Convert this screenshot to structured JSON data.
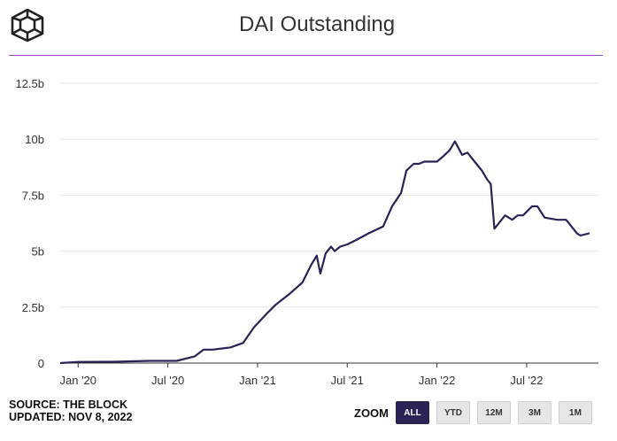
{
  "header": {
    "title": "DAI Outstanding"
  },
  "footer": {
    "source": "SOURCE: THE BLOCK",
    "updated": "UPDATED: NOV 8, 2022"
  },
  "zoom": {
    "label": "ZOOM",
    "buttons": [
      "ALL",
      "YTD",
      "12M",
      "3M",
      "1M"
    ],
    "active": "ALL"
  },
  "colors": {
    "line": "#2a2356",
    "rule": "#a04bc8",
    "active_button": "#2a2356"
  },
  "chart_data": {
    "type": "line",
    "title": "DAI Outstanding",
    "xlabel": "",
    "ylabel": "",
    "ylim": [
      0,
      12.5
    ],
    "y_ticks": [
      {
        "value": 0,
        "label": "0"
      },
      {
        "value": 2.5,
        "label": "2.5b"
      },
      {
        "value": 5,
        "label": "5b"
      },
      {
        "value": 7.5,
        "label": "7.5b"
      },
      {
        "value": 10,
        "label": "10b"
      },
      {
        "value": 12.5,
        "label": "12.5b"
      }
    ],
    "xlim": [
      2019.9,
      2022.9
    ],
    "x_ticks": [
      {
        "value": 2020.0,
        "label": "Jan '20"
      },
      {
        "value": 2020.5,
        "label": "Jul '20"
      },
      {
        "value": 2021.0,
        "label": "Jan '21"
      },
      {
        "value": 2021.5,
        "label": "Jul '21"
      },
      {
        "value": 2022.0,
        "label": "Jan '22"
      },
      {
        "value": 2022.5,
        "label": "Jul '22"
      }
    ],
    "units": "billions",
    "series": [
      {
        "name": "DAI Outstanding",
        "x": [
          2019.9,
          2020.0,
          2020.2,
          2020.4,
          2020.55,
          2020.65,
          2020.7,
          2020.75,
          2020.85,
          2020.92,
          2020.98,
          2021.05,
          2021.1,
          2021.18,
          2021.25,
          2021.3,
          2021.33,
          2021.35,
          2021.38,
          2021.41,
          2021.43,
          2021.46,
          2021.5,
          2021.55,
          2021.62,
          2021.7,
          2021.75,
          2021.8,
          2021.83,
          2021.87,
          2021.9,
          2021.93,
          2021.97,
          2022.0,
          2022.03,
          2022.07,
          2022.1,
          2022.14,
          2022.17,
          2022.22,
          2022.25,
          2022.28,
          2022.3,
          2022.32,
          2022.34,
          2022.38,
          2022.42,
          2022.45,
          2022.48,
          2022.53,
          2022.56,
          2022.6,
          2022.67,
          2022.72,
          2022.75,
          2022.78,
          2022.8,
          2022.85
        ],
        "values": [
          0.0,
          0.05,
          0.06,
          0.1,
          0.1,
          0.3,
          0.6,
          0.6,
          0.7,
          0.9,
          1.6,
          2.2,
          2.6,
          3.1,
          3.6,
          4.4,
          4.8,
          4.0,
          4.9,
          5.2,
          5.0,
          5.2,
          5.3,
          5.5,
          5.8,
          6.1,
          7.0,
          7.6,
          8.6,
          8.9,
          8.9,
          9.0,
          9.0,
          9.0,
          9.2,
          9.5,
          9.9,
          9.3,
          9.4,
          8.9,
          8.6,
          8.2,
          8.0,
          6.0,
          6.2,
          6.6,
          6.4,
          6.6,
          6.6,
          7.0,
          7.0,
          6.5,
          6.4,
          6.4,
          6.1,
          5.8,
          5.7,
          5.8
        ]
      }
    ]
  }
}
